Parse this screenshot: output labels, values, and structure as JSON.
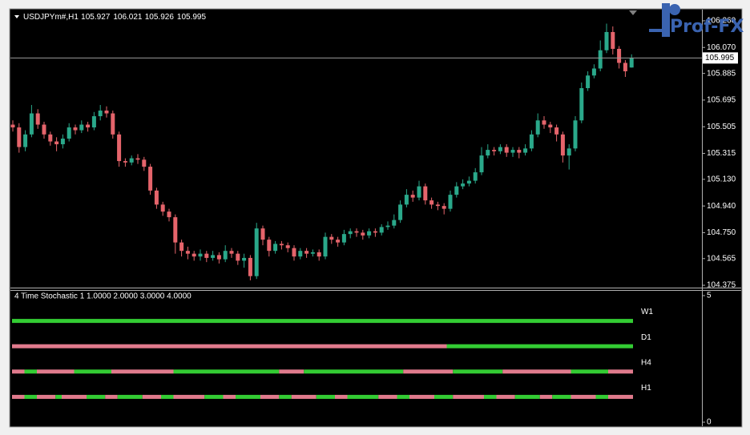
{
  "window": {
    "logo": "Prof-FX"
  },
  "chart_data": [
    {
      "type": "candlestick",
      "title": "USDJPYm#,H1",
      "quote": [
        105.927,
        106.021,
        105.926,
        105.995
      ],
      "up_color": "#2aa88a",
      "down_color": "#e5646b",
      "current_price": 105.995,
      "ylim": [
        104.364,
        106.334
      ],
      "yticks": [
        {
          "value": 106.26,
          "label": "106.260"
        },
        {
          "value": 106.07,
          "label": "106.070"
        },
        105.885,
        105.695,
        105.505,
        105.315,
        {
          "value": 105.13,
          "label": "105.130"
        },
        {
          "value": 104.94,
          "label": "104.940"
        },
        {
          "value": 104.75,
          "label": "104.750"
        },
        104.565,
        104.375
      ],
      "open": [
        105.52,
        105.5,
        105.36,
        105.45,
        105.6,
        105.52,
        105.45,
        105.4,
        105.38,
        105.42,
        105.5,
        105.48,
        105.52,
        105.5,
        105.58,
        105.62,
        105.6,
        105.45,
        105.26,
        105.25,
        105.28,
        105.27,
        105.22,
        105.05,
        104.95,
        104.9,
        104.86,
        104.68,
        104.62,
        104.6,
        104.58,
        104.6,
        104.57,
        104.59,
        104.56,
        104.62,
        104.6,
        104.55,
        104.57,
        104.44,
        104.78,
        104.7,
        104.62,
        104.67,
        104.66,
        104.64,
        104.58,
        104.62,
        104.6,
        104.61,
        104.58,
        104.72,
        104.7,
        104.68,
        104.74,
        104.76,
        104.75,
        104.73,
        104.76,
        104.75,
        104.79,
        104.8,
        104.84,
        104.95,
        105.02,
        105.0,
        105.08,
        104.98,
        104.95,
        104.94,
        104.92,
        105.02,
        105.08,
        105.1,
        105.12,
        105.18,
        105.3,
        105.34,
        105.33,
        105.36,
        105.32,
        105.34,
        105.32,
        105.35,
        105.45,
        105.55,
        105.52,
        105.5,
        105.45,
        105.3,
        105.35,
        105.55,
        105.78,
        105.87,
        105.92,
        106.05,
        106.18,
        106.06,
        105.96,
        105.927
      ],
      "high": [
        105.55,
        105.53,
        105.48,
        105.66,
        105.63,
        105.54,
        105.47,
        105.43,
        105.45,
        105.53,
        105.52,
        105.55,
        105.54,
        105.61,
        105.66,
        105.65,
        105.62,
        105.47,
        105.28,
        105.3,
        105.31,
        105.29,
        105.24,
        105.07,
        104.97,
        104.92,
        104.88,
        104.7,
        104.65,
        104.62,
        104.63,
        104.62,
        104.62,
        104.61,
        104.66,
        104.64,
        104.62,
        104.6,
        104.59,
        104.82,
        104.8,
        104.72,
        104.69,
        104.69,
        104.68,
        104.66,
        104.64,
        104.64,
        104.63,
        104.63,
        104.75,
        104.74,
        104.72,
        104.77,
        104.78,
        104.78,
        104.77,
        104.78,
        104.78,
        104.81,
        104.83,
        104.88,
        104.98,
        105.06,
        105.05,
        105.12,
        105.1,
        105.0,
        104.97,
        104.96,
        105.05,
        105.11,
        105.13,
        105.15,
        105.21,
        105.36,
        105.38,
        105.36,
        105.38,
        105.38,
        105.36,
        105.36,
        105.38,
        105.48,
        105.6,
        105.58,
        105.54,
        105.52,
        105.47,
        105.38,
        105.58,
        105.82,
        105.9,
        105.95,
        106.12,
        106.24,
        106.22,
        106.08,
        105.98,
        106.021
      ],
      "low": [
        105.47,
        105.32,
        105.33,
        105.43,
        105.49,
        105.42,
        105.37,
        105.33,
        105.35,
        105.4,
        105.45,
        105.46,
        105.47,
        105.48,
        105.55,
        105.57,
        105.42,
        105.22,
        105.22,
        105.23,
        105.24,
        105.19,
        105.02,
        104.92,
        104.87,
        104.83,
        104.6,
        104.58,
        104.56,
        104.55,
        104.55,
        104.54,
        104.55,
        104.53,
        104.54,
        104.57,
        104.52,
        104.5,
        104.41,
        104.42,
        104.66,
        104.58,
        104.6,
        104.63,
        104.61,
        104.55,
        104.56,
        104.57,
        104.58,
        104.55,
        104.56,
        104.67,
        104.65,
        104.66,
        104.71,
        104.72,
        104.7,
        104.71,
        104.72,
        104.73,
        104.77,
        104.78,
        104.82,
        104.93,
        104.97,
        104.98,
        104.95,
        104.92,
        104.91,
        104.88,
        104.9,
        105.0,
        105.06,
        105.08,
        105.1,
        105.16,
        105.28,
        105.3,
        105.31,
        105.29,
        105.29,
        105.28,
        105.3,
        105.33,
        105.43,
        105.49,
        105.46,
        105.4,
        105.25,
        105.2,
        105.33,
        105.53,
        105.76,
        105.85,
        105.9,
        106.03,
        106.02,
        105.92,
        105.86,
        105.926
      ],
      "close": [
        105.5,
        105.36,
        105.45,
        105.6,
        105.52,
        105.45,
        105.4,
        105.38,
        105.42,
        105.5,
        105.48,
        105.52,
        105.5,
        105.58,
        105.62,
        105.6,
        105.45,
        105.26,
        105.25,
        105.28,
        105.27,
        105.22,
        105.05,
        104.95,
        104.9,
        104.86,
        104.68,
        104.62,
        104.6,
        104.58,
        104.6,
        104.57,
        104.59,
        104.56,
        104.62,
        104.6,
        104.55,
        104.57,
        104.44,
        104.78,
        104.7,
        104.62,
        104.67,
        104.66,
        104.64,
        104.58,
        104.62,
        104.6,
        104.61,
        104.58,
        104.72,
        104.7,
        104.68,
        104.74,
        104.76,
        104.75,
        104.73,
        104.76,
        104.75,
        104.79,
        104.8,
        104.84,
        104.95,
        105.02,
        105.0,
        105.08,
        104.98,
        104.95,
        104.94,
        104.92,
        105.02,
        105.08,
        105.1,
        105.12,
        105.18,
        105.3,
        105.34,
        105.33,
        105.36,
        105.32,
        105.34,
        105.32,
        105.35,
        105.45,
        105.55,
        105.52,
        105.5,
        105.45,
        105.3,
        105.35,
        105.55,
        105.78,
        105.87,
        105.92,
        106.05,
        106.18,
        106.06,
        105.96,
        105.9,
        105.995
      ]
    },
    {
      "type": "level_bars",
      "title": "4 Time Stochastic 1 1.0000 2.0000 3.0000 4.0000",
      "ylim": [
        0,
        5
      ],
      "yticks": [
        5,
        0
      ],
      "series": [
        {
          "name": "W1",
          "level": 4,
          "runs": [
            100
          ],
          "run_colors": [
            "#33cc33"
          ]
        },
        {
          "name": "D1",
          "level": 3,
          "runs": [
            70,
            30
          ],
          "run_colors": [
            "#e07a8c",
            "#33cc33"
          ]
        },
        {
          "name": "H4",
          "level": 2,
          "runs": [
            2,
            2,
            6,
            6,
            10,
            17,
            4,
            16,
            8,
            8,
            11,
            6,
            4
          ],
          "run_colors": [
            "#e07a8c",
            "#33cc33",
            "#e07a8c",
            "#33cc33",
            "#e07a8c",
            "#33cc33",
            "#e07a8c",
            "#33cc33",
            "#e07a8c",
            "#33cc33",
            "#e07a8c",
            "#33cc33",
            "#e07a8c"
          ]
        },
        {
          "name": "H1",
          "level": 1,
          "runs": [
            2,
            2,
            3,
            1,
            4,
            3,
            2,
            4,
            3,
            2,
            5,
            3,
            2,
            4,
            3,
            2,
            4,
            3,
            2,
            5,
            3,
            2,
            4,
            3,
            5,
            2,
            3,
            4,
            2,
            3,
            4,
            2,
            4
          ],
          "run_colors": [
            "#e07a8c",
            "#33cc33",
            "#e07a8c",
            "#33cc33",
            "#e07a8c",
            "#33cc33",
            "#e07a8c",
            "#33cc33",
            "#e07a8c",
            "#33cc33",
            "#e07a8c",
            "#33cc33",
            "#e07a8c",
            "#33cc33",
            "#e07a8c",
            "#33cc33",
            "#e07a8c",
            "#33cc33",
            "#e07a8c",
            "#33cc33",
            "#e07a8c",
            "#33cc33",
            "#e07a8c",
            "#33cc33",
            "#e07a8c",
            "#33cc33",
            "#e07a8c",
            "#33cc33",
            "#e07a8c",
            "#33cc33",
            "#e07a8c",
            "#33cc33",
            "#e07a8c"
          ]
        }
      ]
    }
  ]
}
